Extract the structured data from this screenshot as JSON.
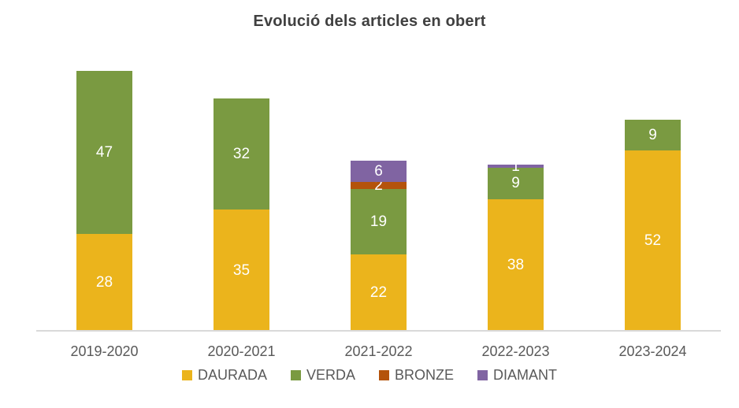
{
  "title": "Evolució dels articles en obert",
  "chart_data": {
    "type": "bar",
    "stacked": true,
    "title": "Evolució dels articles en obert",
    "categories": [
      "2019-2020",
      "2020-2021",
      "2021-2022",
      "2022-2023",
      "2023-2024"
    ],
    "series": [
      {
        "name": "DAURADA",
        "color": "#EBB41C",
        "values": [
          28,
          35,
          22,
          38,
          52
        ]
      },
      {
        "name": "VERDA",
        "color": "#7A9A41",
        "values": [
          47,
          32,
          19,
          9,
          9
        ]
      },
      {
        "name": "BRONZE",
        "color": "#B4530B",
        "values": [
          0,
          0,
          2,
          0,
          0
        ]
      },
      {
        "name": "DIAMANT",
        "color": "#8064A2",
        "values": [
          0,
          0,
          6,
          1,
          0
        ]
      }
    ],
    "totals": [
      75,
      67,
      49,
      48,
      61
    ],
    "data_labels": "white, centered on each segment, hidden when value is 0",
    "xlabel": "",
    "ylabel": "",
    "ylim": [
      0,
      80
    ],
    "y_axis_visible": false,
    "grid": false,
    "legend_position": "bottom"
  },
  "colors": {
    "title_text": "#404040",
    "axis_text": "#595959",
    "axis_line": "#d9d9d9",
    "label_text": "#ffffff",
    "background": "#ffffff"
  }
}
